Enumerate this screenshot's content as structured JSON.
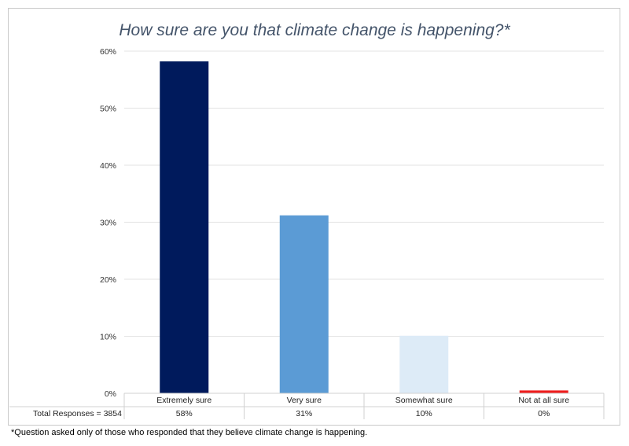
{
  "chart_data": {
    "type": "bar",
    "title": "How sure are you that climate change is happening?*",
    "categories": [
      "Extremely sure",
      "Very sure",
      "Somewhat sure",
      "Not at all sure"
    ],
    "values": [
      58.2,
      31.2,
      10.1,
      0.5
    ],
    "value_labels": [
      "58%",
      "31%",
      "10%",
      "0%"
    ],
    "colors": [
      "#001a5c",
      "#5b9bd5",
      "#ddebf7",
      "#ee1c1c"
    ],
    "ylim": [
      0,
      60
    ],
    "y_ticks": [
      0,
      10,
      20,
      30,
      40,
      50,
      60
    ],
    "y_tick_labels": [
      "0%",
      "10%",
      "20%",
      "30%",
      "40%",
      "50%",
      "60%"
    ],
    "grid": true,
    "table_row_label": "Total Responses =  3854",
    "footnote": "*Question asked only of those who responded that they believe climate change is happening."
  }
}
